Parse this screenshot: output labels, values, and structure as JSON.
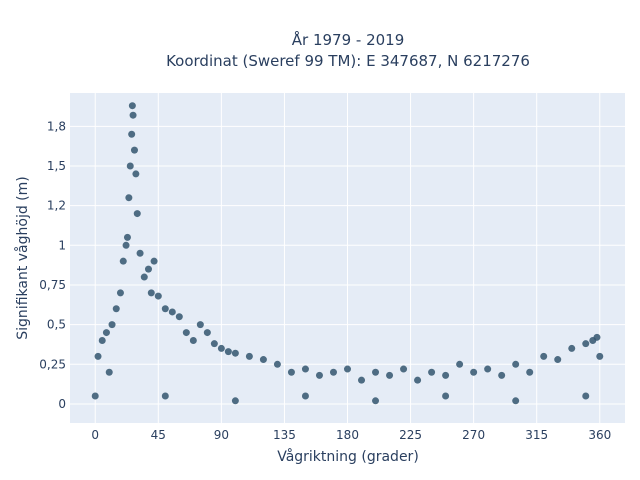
{
  "chart_data": {
    "type": "scatter",
    "title_line1": "År 1979 - 2019",
    "title_line2": "Koordinat (Sweref 99 TM): E 347687, N 6217276",
    "xlabel": "Vågriktning (grader)",
    "ylabel": "Signifikant våghöjd (m)",
    "xlim": [
      -18,
      378
    ],
    "ylim": [
      -0.12,
      1.96
    ],
    "x_ticks": [
      0,
      45,
      90,
      135,
      180,
      225,
      270,
      315,
      360
    ],
    "x_tick_labels": [
      "0",
      "45",
      "90",
      "135",
      "180",
      "225",
      "270",
      "315",
      "360"
    ],
    "y_ticks": [
      0,
      0.25,
      0.5,
      0.75,
      1,
      1.25,
      1.5,
      1.75
    ],
    "y_tick_labels": [
      "0",
      "0,25",
      "0,5",
      "0,75",
      "1",
      "1,2",
      "1,5",
      "1,8"
    ],
    "grid": true,
    "marker_color": "#34566e",
    "background_color": "#e5ecf6",
    "series": [
      {
        "values": [
          [
            0,
            0.05
          ],
          [
            2,
            0.3
          ],
          [
            5,
            0.4
          ],
          [
            8,
            0.45
          ],
          [
            10,
            0.2
          ],
          [
            12,
            0.5
          ],
          [
            15,
            0.6
          ],
          [
            18,
            0.7
          ],
          [
            20,
            0.9
          ],
          [
            22,
            1.0
          ],
          [
            23,
            1.05
          ],
          [
            24,
            1.3
          ],
          [
            25,
            1.5
          ],
          [
            26,
            1.7
          ],
          [
            26.5,
            1.88
          ],
          [
            27,
            1.82
          ],
          [
            28,
            1.6
          ],
          [
            29,
            1.45
          ],
          [
            30,
            1.2
          ],
          [
            32,
            0.95
          ],
          [
            35,
            0.8
          ],
          [
            38,
            0.85
          ],
          [
            40,
            0.7
          ],
          [
            42,
            0.9
          ],
          [
            45,
            0.68
          ],
          [
            50,
            0.6
          ],
          [
            55,
            0.58
          ],
          [
            60,
            0.55
          ],
          [
            65,
            0.45
          ],
          [
            70,
            0.4
          ],
          [
            75,
            0.5
          ],
          [
            80,
            0.45
          ],
          [
            85,
            0.38
          ],
          [
            90,
            0.35
          ],
          [
            95,
            0.33
          ],
          [
            100,
            0.32
          ],
          [
            110,
            0.3
          ],
          [
            120,
            0.28
          ],
          [
            130,
            0.25
          ],
          [
            140,
            0.2
          ],
          [
            150,
            0.22
          ],
          [
            160,
            0.18
          ],
          [
            170,
            0.2
          ],
          [
            180,
            0.22
          ],
          [
            190,
            0.15
          ],
          [
            200,
            0.2
          ],
          [
            210,
            0.18
          ],
          [
            220,
            0.22
          ],
          [
            230,
            0.15
          ],
          [
            240,
            0.2
          ],
          [
            250,
            0.18
          ],
          [
            260,
            0.25
          ],
          [
            270,
            0.2
          ],
          [
            280,
            0.22
          ],
          [
            290,
            0.18
          ],
          [
            300,
            0.25
          ],
          [
            310,
            0.2
          ],
          [
            320,
            0.3
          ],
          [
            330,
            0.28
          ],
          [
            340,
            0.35
          ],
          [
            350,
            0.38
          ],
          [
            355,
            0.4
          ],
          [
            358,
            0.42
          ],
          [
            360,
            0.3
          ],
          [
            100,
            0.02
          ],
          [
            200,
            0.02
          ],
          [
            300,
            0.02
          ],
          [
            50,
            0.05
          ],
          [
            150,
            0.05
          ],
          [
            250,
            0.05
          ],
          [
            350,
            0.05
          ]
        ]
      }
    ]
  }
}
